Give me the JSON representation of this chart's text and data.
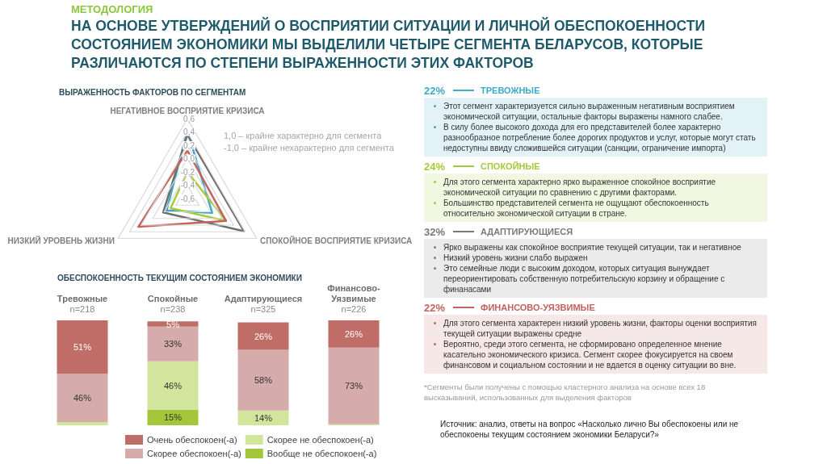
{
  "chart_data": [
    {
      "type": "other",
      "subtitle": "МЕТОДОЛОГИЯ",
      "title": "НА ОСНОВЕ УТВЕРЖДЕНИЙ О ВОСПРИЯТИИ СИТУАЦИИ И ЛИЧНОЙ ОБЕСПОКОЕННОСТИ СОСТОЯНИЕМ ЭКОНОМИКИ МЫ ВЫДЕЛИЛИ ЧЕТЫРЕ СЕГМЕНТА БЕЛАРУСОВ, КОТОРЫЕ РАЗЛИЧАЮТСЯ ПО СТЕПЕНИ ВЫРАЖЕННОСТИ ЭТИХ ФАКТОРОВ"
    },
    {
      "type": "radar",
      "title": "ВЫРАЖЕННОСТЬ ФАКТОРОВ ПО СЕГМЕНТАМ",
      "categories": [
        "НЕГАТИВНОЕ ВОСПРИЯТИЕ КРИЗИСА",
        "СПОКОЙНОЕ ВОСПРИЯТИЕ КРИЗИСА",
        "НИЗКИЙ УРОВЕНЬ ЖИЗНИ"
      ],
      "series": [
        {
          "color": "#3ea9c8",
          "values": [
            0.42,
            -0.17,
            -0.24
          ]
        },
        {
          "color": "#a6c93c",
          "values": [
            -0.2,
            0.07,
            -0.31
          ]
        },
        {
          "color": "#6f6f6f",
          "values": [
            0.36,
            0.38,
            -0.18
          ]
        },
        {
          "color": "#c4625c",
          "values": [
            0.12,
            0.07,
            0.25
          ]
        }
      ],
      "ylim": [
        -0.6,
        0.6
      ],
      "yticks": [
        {
          "value": -0.6,
          "label": "-0,6"
        },
        {
          "value": -0.4,
          "label": "-0,4"
        },
        {
          "value": -0.2,
          "label": "-0,2"
        },
        {
          "value": 0,
          "label": "0,0"
        },
        {
          "value": 0.2,
          "label": "0,2"
        },
        {
          "value": 0.4,
          "label": "0,4"
        },
        {
          "value": 0.6,
          "label": "0,6"
        }
      ],
      "grid": true,
      "annotations": [
        "1,0 – крайне характерно для сегмента",
        "-1,0 – крайне нехарактерно для сегмента"
      ]
    },
    {
      "type": "bar",
      "title": "ОБЕСПОКОЕННОСТЬ ТЕКУЩИМ СОСТОЯНИЕМ ЭКОНОМИКИ",
      "categories": [
        "Тревожные\nn=218",
        "Спокойные\nn=238",
        "Адаптирующиеся\nn=325",
        "Финансово-\nУязвимые\nn=226"
      ],
      "series": [
        {
          "name": "Вообще не обеспокоен(-а)",
          "color": "#a4c63a",
          "values": [
            null,
            15,
            null,
            null
          ],
          "value_labels": [
            null,
            "15%",
            null,
            null
          ]
        },
        {
          "name": "Скорее не обеспокоен(-а)",
          "color": "#d2e59c",
          "values": [
            3,
            46,
            14,
            1
          ],
          "value_labels": [
            null,
            "46%",
            "14%",
            null
          ]
        },
        {
          "name": "Скорее обеспокоен(-а)",
          "color": "#d6abab",
          "values": [
            46,
            33,
            58,
            73
          ],
          "value_labels": [
            "46%",
            "33%",
            "58%",
            "73%"
          ]
        },
        {
          "name": "Очень обеспокоен(-а)",
          "color": "#c06c67",
          "values": [
            51,
            5,
            26,
            26
          ],
          "value_labels": [
            "51%",
            "5%",
            "26%",
            "26%"
          ]
        }
      ],
      "stacked": true,
      "ylim": [
        0,
        100
      ],
      "tick_labels": "x",
      "legend": "bottom"
    },
    {
      "type": "other",
      "categories": [
        "ТРЕВОЖНЫЕ",
        "СПОКОЙНЫЕ",
        "АДАПТИРУЮЩИЕСЯ",
        "ФИНАНСОВО-УЯЗВИМЫЕ"
      ],
      "colors": [
        "#3ea9c8",
        "#a6c93c",
        "#7a7a7a",
        "#c4625c"
      ],
      "annotations": [
        {
          "text": "22%",
          "x": "ТРЕВОЖНЫЕ"
        },
        {
          "text": "24%",
          "x": "СПОКОЙНЫЕ"
        },
        {
          "text": "32%",
          "x": "АДАПТИРУЮЩИЕСЯ"
        },
        {
          "text": "22%",
          "x": "ФИНАНСОВО-УЯЗВИМЫЕ"
        },
        {
          "text": "Этот сегмент характеризуется сильно выраженным негативным восприятием экономической ситуации, остальные факторы выражены намного слабее.",
          "x": "ТРЕВОЖНЫЕ"
        },
        {
          "text": "В силу более высокого дохода для его представителей более характерно разнообразное потребление более дорогих продуктов и услуг, которые могут стать недоступны ввиду сложившейся ситуации (санкции, ограничение импорта)",
          "x": "ТРЕВОЖНЫЕ"
        },
        {
          "text": "Для этого сегмента характерно ярко выраженное спокойное восприятие экономической ситуации по сравнению с другими факторами.",
          "x": "СПОКОЙНЫЕ"
        },
        {
          "text": "Большинство представителей сегмента не ощущают обеспокоенность относительно экономической ситуации в стране.",
          "x": "СПОКОЙНЫЕ"
        },
        {
          "text": "Ярко выражены как спокойное восприятие текущей ситуации, так и негативное",
          "x": "АДАПТИРУЮЩИЕСЯ"
        },
        {
          "text": "Низкий уровень жизни слабо выражен",
          "x": "АДАПТИРУЮЩИЕСЯ"
        },
        {
          "text": "Это семейные люди с высоким доходом, которых ситуация вынуждает переориентировать собственную потребительскую корзину и обращение с финанасами",
          "x": "АДАПТИРУЮЩИЕСЯ"
        },
        {
          "text": "Для этого сегмента характерен низкий уровень жизни, факторы оценки восприятия текущей ситуации выражены средне",
          "x": "ФИНАНСОВО-УЯЗВИМЫЕ"
        },
        {
          "text": "Вероятно, среди этого сегмента, не сформировано определенное мнение касательно экономического кризиса. Сегмент скорее фокусируется на своем финансовом и социальном состоянии и не вдается в оценку ситуации во вне.",
          "x": "ФИНАНСОВО-УЯЗВИМЫЕ"
        },
        "*Сегменты были получены с помощью кластерного анализа на основе всех 18 высказываний, использованных для выделения факторов",
        "Источник: анализ, ответы на вопрос «Насколько лично Вы обеспокоены или не обеспокоены текущим состоянием экономики Беларуси?»"
      ]
    }
  ]
}
